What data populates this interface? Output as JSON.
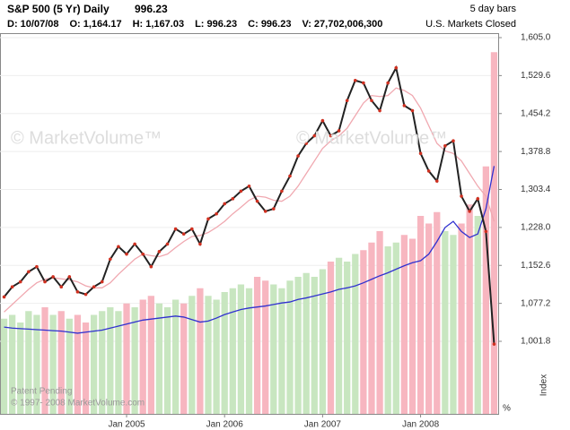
{
  "header": {
    "title": "S&P 500 (5 Yr) Daily",
    "last": "996.23",
    "bars": "5 day bars",
    "fields": [
      "D: 10/07/08",
      "O: 1,164.17",
      "H: 1,167.03",
      "L: 996.23",
      "C: 996.23",
      "V: 27,702,006,300"
    ],
    "status": "U.S. Markets Closed"
  },
  "watermarks": [
    "© MarketVolume™",
    "© MarketVolume™"
  ],
  "footer": [
    "Patent Pending",
    "© 1997- 2008 MarketVolume.com"
  ],
  "chart_data": {
    "type": "line",
    "x": [
      "2003-10",
      "2003-11",
      "2003-12",
      "2004-01",
      "2004-02",
      "2004-03",
      "2004-04",
      "2004-05",
      "2004-06",
      "2004-07",
      "2004-08",
      "2004-09",
      "2004-10",
      "2004-11",
      "2004-12",
      "2005-01",
      "2005-02",
      "2005-03",
      "2005-04",
      "2005-05",
      "2005-06",
      "2005-07",
      "2005-08",
      "2005-09",
      "2005-10",
      "2005-11",
      "2005-12",
      "2006-01",
      "2006-02",
      "2006-03",
      "2006-04",
      "2006-05",
      "2006-06",
      "2006-07",
      "2006-08",
      "2006-09",
      "2006-10",
      "2006-11",
      "2006-12",
      "2007-01",
      "2007-02",
      "2007-03",
      "2007-04",
      "2007-05",
      "2007-06",
      "2007-07",
      "2007-08",
      "2007-09",
      "2007-10",
      "2007-11",
      "2007-12",
      "2008-01",
      "2008-02",
      "2008-03",
      "2008-04",
      "2008-05",
      "2008-06",
      "2008-07",
      "2008-08",
      "2008-09",
      "2008-10"
    ],
    "series": [
      {
        "color": "#222222",
        "marker_color": "#d03020",
        "values": [
          1090,
          1110,
          1120,
          1140,
          1150,
          1120,
          1130,
          1110,
          1130,
          1100,
          1095,
          1110,
          1120,
          1165,
          1190,
          1175,
          1195,
          1175,
          1150,
          1180,
          1195,
          1225,
          1215,
          1225,
          1195,
          1245,
          1255,
          1275,
          1285,
          1300,
          1310,
          1280,
          1260,
          1265,
          1300,
          1330,
          1370,
          1395,
          1410,
          1440,
          1410,
          1420,
          1480,
          1520,
          1515,
          1480,
          1460,
          1515,
          1545,
          1470,
          1460,
          1375,
          1340,
          1320,
          1390,
          1400,
          1290,
          1260,
          1285,
          1220,
          996.23
        ]
      },
      {
        "color": "#f0a8b0",
        "values": [
          1060,
          1075,
          1090,
          1105,
          1118,
          1125,
          1128,
          1126,
          1124,
          1120,
          1112,
          1108,
          1108,
          1118,
          1135,
          1150,
          1165,
          1175,
          1172,
          1170,
          1175,
          1188,
          1200,
          1210,
          1212,
          1218,
          1228,
          1240,
          1255,
          1268,
          1282,
          1290,
          1288,
          1282,
          1280,
          1290,
          1310,
          1335,
          1360,
          1385,
          1400,
          1410,
          1425,
          1450,
          1475,
          1490,
          1488,
          1490,
          1505,
          1500,
          1490,
          1465,
          1430,
          1395,
          1380,
          1375,
          1360,
          1335,
          1310,
          1290,
          1240
        ]
      },
      {
        "color": "#3030d0",
        "values": [
          1030,
          1028,
          1027,
          1026,
          1025,
          1024,
          1023,
          1022,
          1020,
          1018,
          1020,
          1022,
          1024,
          1028,
          1032,
          1036,
          1040,
          1044,
          1046,
          1048,
          1050,
          1052,
          1050,
          1045,
          1040,
          1042,
          1048,
          1055,
          1060,
          1065,
          1068,
          1070,
          1072,
          1075,
          1078,
          1080,
          1085,
          1088,
          1092,
          1096,
          1100,
          1105,
          1108,
          1112,
          1118,
          1125,
          1132,
          1138,
          1145,
          1152,
          1158,
          1162,
          1175,
          1200,
          1228,
          1240,
          1220,
          1208,
          1215,
          1265,
          1350
        ]
      },
      {
        "axis": "y2",
        "up_color": "#c8e6c0",
        "down_color": "#f7b6c0",
        "values": [
          25,
          26,
          24,
          27,
          26,
          28,
          26,
          27,
          25,
          26,
          24,
          26,
          27,
          28,
          27,
          29,
          28,
          30,
          31,
          29,
          28,
          30,
          29,
          31,
          33,
          31,
          30,
          32,
          33,
          34,
          33,
          36,
          35,
          34,
          33,
          35,
          36,
          37,
          36,
          38,
          40,
          41,
          40,
          42,
          43,
          45,
          48,
          44,
          45,
          47,
          46,
          52,
          50,
          53,
          48,
          47,
          50,
          55,
          52,
          65,
          95
        ]
      }
    ],
    "ylim": [
      857.7,
      1613.9
    ],
    "yticks": [
      {
        "value": 1605,
        "label": "1,605.0"
      },
      {
        "value": 1529.6,
        "label": "1,529.6"
      },
      {
        "value": 1454.2,
        "label": "1,454.2"
      },
      {
        "value": 1378.8,
        "label": "1,378.8"
      },
      {
        "value": 1303.4,
        "label": "1,303.4"
      },
      {
        "value": 1228,
        "label": "1,228.0"
      },
      {
        "value": 1152.6,
        "label": "1,152.6"
      },
      {
        "value": 1077.2,
        "label": "1,077.2"
      },
      {
        "value": 1001.8,
        "label": "1,001.8"
      }
    ],
    "y2lim": [
      0,
      100
    ],
    "xticks": [
      {
        "value": "2005-01",
        "label": "Jan 2005"
      },
      {
        "value": "2006-01",
        "label": "Jan 2006"
      },
      {
        "value": "2007-01",
        "label": "Jan 2007"
      },
      {
        "value": "2008-01",
        "label": "Jan 2008"
      }
    ],
    "y_label": "Index",
    "y2_label": "%",
    "grid": true
  }
}
